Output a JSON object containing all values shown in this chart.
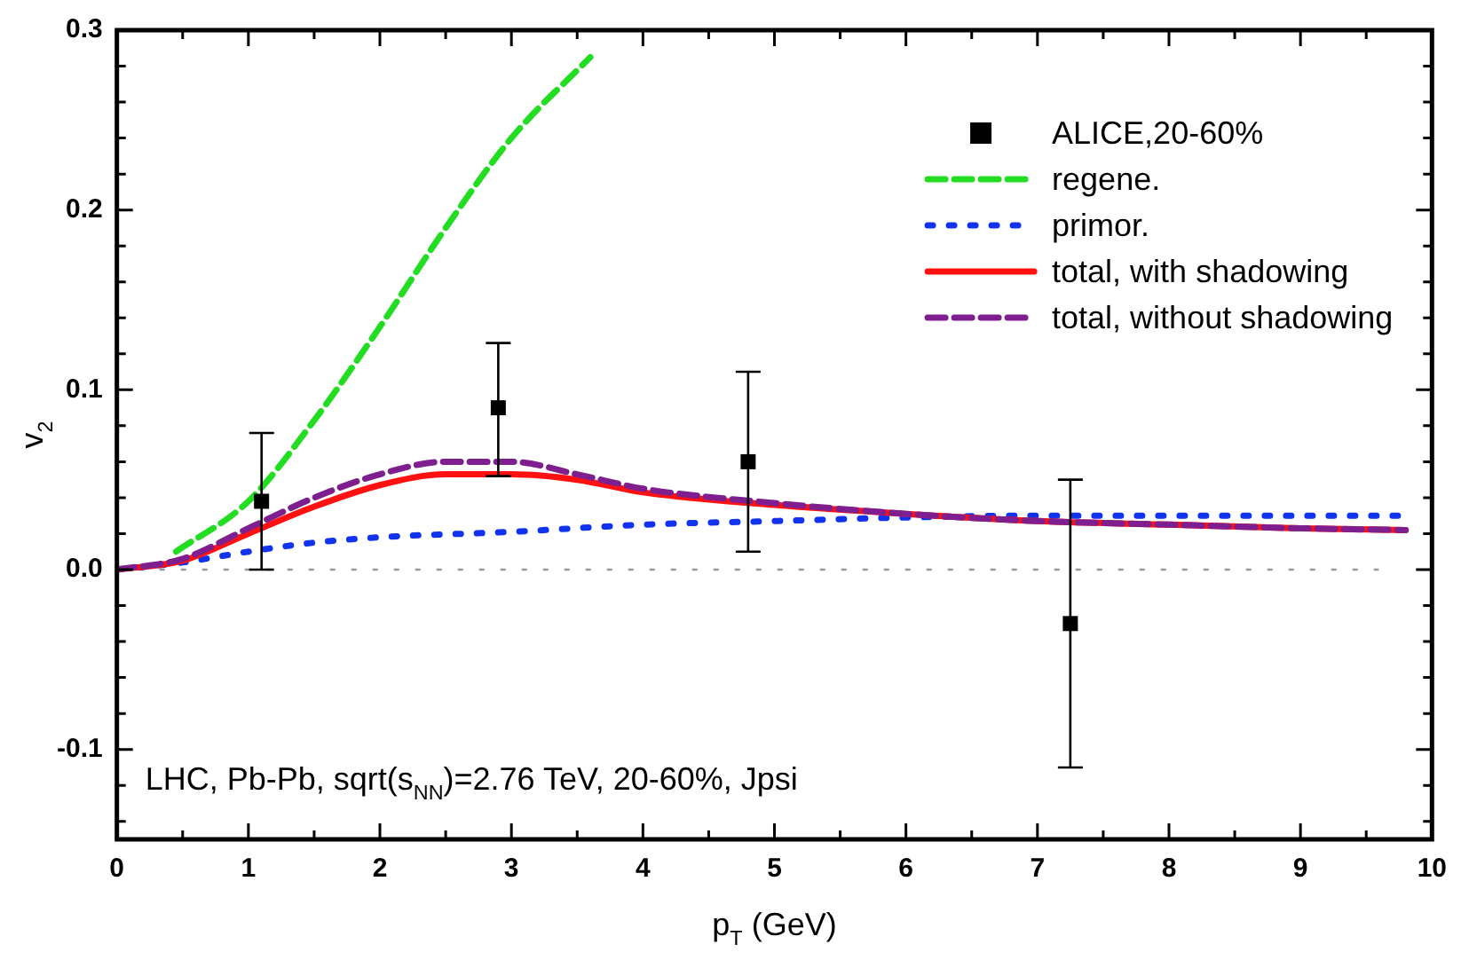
{
  "chart_data": {
    "type": "line",
    "xlabel": "p$_{T}$ (GeV)",
    "ylabel": "v$_{2}$",
    "xlim": [
      0,
      10
    ],
    "xticks": [
      0,
      {
        "value": 0.5,
        "label": null
      },
      1,
      {
        "value": 1.5,
        "label": null
      },
      2,
      {
        "value": 2.5,
        "label": null
      },
      3,
      {
        "value": 3.5,
        "label": null
      },
      4,
      {
        "value": 4.5,
        "label": null
      },
      5,
      {
        "value": 5.5,
        "label": null
      },
      6,
      {
        "value": 6.5,
        "label": null
      },
      7,
      {
        "value": 7.5,
        "label": null
      },
      8,
      {
        "value": 8.5,
        "label": null
      },
      9,
      {
        "value": 9.5,
        "label": null
      },
      10
    ],
    "ylim": [
      -0.15,
      0.3
    ],
    "yticks": [
      {
        "value": -0.14,
        "label": null
      },
      {
        "value": -0.12,
        "label": null
      },
      -0.1,
      {
        "value": -0.08,
        "label": null
      },
      {
        "value": -0.06,
        "label": null
      },
      {
        "value": -0.04,
        "label": null
      },
      {
        "value": -0.02,
        "label": null
      },
      {
        "value": 0,
        "label": "0.0"
      },
      {
        "value": 0.02,
        "label": null
      },
      {
        "value": 0.04,
        "label": null
      },
      {
        "value": 0.06,
        "label": null
      },
      {
        "value": 0.08,
        "label": null
      },
      0.1,
      {
        "value": 0.12,
        "label": null
      },
      {
        "value": 0.14,
        "label": null
      },
      {
        "value": 0.16,
        "label": null
      },
      {
        "value": 0.18,
        "label": null
      },
      0.2,
      {
        "value": 0.22,
        "label": null
      },
      {
        "value": 0.24,
        "label": null
      },
      {
        "value": 0.26,
        "label": null
      },
      {
        "value": 0.28,
        "label": null
      },
      0.3
    ],
    "grid": false,
    "legend": "top right",
    "series": [
      {
        "name": "ALICE,20-60%",
        "type": "scatter",
        "marker": "square",
        "color": "#000000",
        "x": [
          1.1,
          2.9,
          4.8,
          7.25
        ],
        "values": [
          0.038,
          0.09,
          0.06,
          -0.03
        ],
        "errors": [
          [
            0.0,
            0.076
          ],
          [
            0.052,
            0.126
          ],
          [
            0.01,
            0.11
          ],
          [
            -0.11,
            0.05
          ]
        ]
      },
      {
        "name": "regene.",
        "line_style": "dashed",
        "color": "#22dd22",
        "x": [
          0.45,
          1,
          1.5,
          2,
          2.5,
          3,
          3.6
        ],
        "values": [
          0.01,
          0.038,
          0.083,
          0.135,
          0.19,
          0.24,
          0.285
        ]
      },
      {
        "name": "primor.",
        "line_style": "dotted",
        "color": "#1133ee",
        "x": [
          0,
          0.5,
          1,
          1.5,
          2,
          3,
          4,
          5,
          6,
          7,
          8,
          9,
          9.8
        ],
        "values": [
          0,
          0.004,
          0.01,
          0.015,
          0.018,
          0.021,
          0.025,
          0.027,
          0.029,
          0.03,
          0.03,
          0.03,
          0.03
        ]
      },
      {
        "name": "total, with shadowing",
        "line_style": "solid",
        "color": "#ff1111",
        "x": [
          0,
          0.5,
          1,
          1.5,
          2,
          2.5,
          3,
          3.5,
          4,
          5,
          6,
          7,
          8,
          9,
          9.8
        ],
        "values": [
          0,
          0.005,
          0.02,
          0.035,
          0.047,
          0.053,
          0.053,
          0.05,
          0.043,
          0.036,
          0.031,
          0.027,
          0.025,
          0.023,
          0.022
        ]
      },
      {
        "name": "total, without shadowing",
        "line_style": "dashed",
        "color": "#7f1f8f",
        "x": [
          0,
          0.5,
          1,
          1.5,
          2,
          2.5,
          3,
          3.5,
          4,
          5,
          6,
          7,
          8,
          9,
          9.8
        ],
        "values": [
          0,
          0.006,
          0.023,
          0.04,
          0.053,
          0.06,
          0.06,
          0.053,
          0.045,
          0.037,
          0.031,
          0.027,
          0.025,
          0.023,
          0.022
        ]
      }
    ],
    "ref_lines": [
      {
        "axis": "y",
        "value": 0,
        "color": "#999999",
        "line_style": "dotted"
      }
    ],
    "annotations": [
      "LHC, Pb-Pb, sqrt(s$_{NN}$)=2.76 TeV, 20-60%, Jpsi"
    ]
  }
}
